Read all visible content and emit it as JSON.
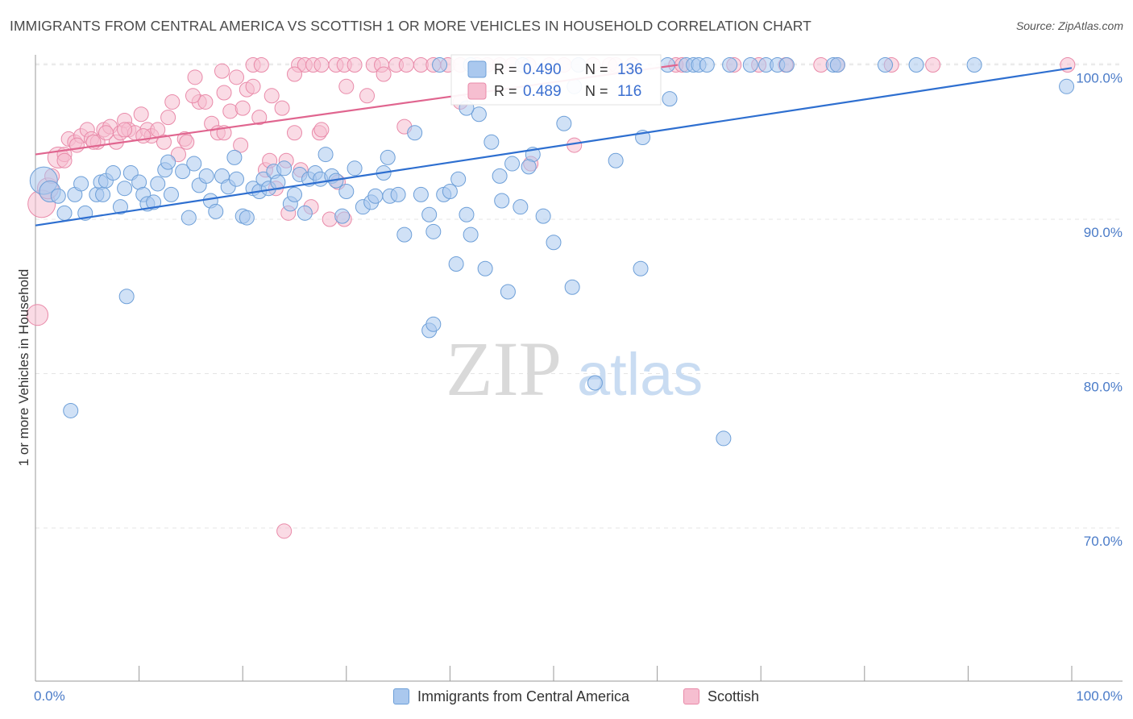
{
  "title": "IMMIGRANTS FROM CENTRAL AMERICA VS SCOTTISH 1 OR MORE VEHICLES IN HOUSEHOLD CORRELATION CHART",
  "source": "Source: ZipAtlas.com",
  "watermark": {
    "zip": "ZIP",
    "atlas": "atlas"
  },
  "colors": {
    "blue_fill": "#aac8ee",
    "blue_stroke": "#6d9fd8",
    "blue_line": "#2e6fd0",
    "pink_fill": "#f6bed0",
    "pink_stroke": "#e98aa9",
    "pink_line": "#e0658f",
    "axis_label": "#4a7bc8",
    "grid": "#e4e4e4"
  },
  "stats_legend": [
    {
      "r_label": "R = ",
      "r_value": "0.490",
      "n_label": "N = ",
      "n_value": "136",
      "series": "blue"
    },
    {
      "r_label": "R = ",
      "r_value": "0.489",
      "n_label": "N = ",
      "n_value": "116",
      "series": "pink"
    }
  ],
  "bottom_legend": [
    {
      "label": "Immigrants from Central America",
      "series": "blue"
    },
    {
      "label": "Scottish",
      "series": "pink"
    }
  ],
  "chart_data": {
    "type": "scatter",
    "title": "IMMIGRANTS FROM CENTRAL AMERICA VS SCOTTISH 1 OR MORE VEHICLES IN HOUSEHOLD CORRELATION CHART",
    "xlabel": "",
    "ylabel": "1 or more Vehicles in Household",
    "xlim": [
      0,
      100
    ],
    "ylim": [
      59.5,
      102
    ],
    "x_tick_labels": [
      "0.0%",
      "100.0%"
    ],
    "y_ticks": [
      70,
      80,
      90,
      100
    ],
    "y_tick_labels": [
      "70.0%",
      "80.0%",
      "90.0%",
      "100.0%"
    ],
    "grid": true,
    "legend_position": "top-center",
    "series": [
      {
        "name": "Immigrants from Central America",
        "color": "#aac8ee",
        "trend": {
          "x": [
            0,
            100
          ],
          "y": [
            89.6,
            99.8
          ]
        },
        "points": [
          [
            0.8,
            92.5,
            3
          ],
          [
            1.4,
            91.8,
            2
          ],
          [
            2.2,
            91.5,
            1
          ],
          [
            2.8,
            90.4,
            1
          ],
          [
            3.8,
            91.6,
            1
          ],
          [
            4.4,
            92.3,
            1
          ],
          [
            4.8,
            90.4,
            1
          ],
          [
            5.9,
            91.6,
            1
          ],
          [
            6.3,
            92.4,
            1
          ],
          [
            6.5,
            91.6,
            1
          ],
          [
            6.8,
            92.5,
            1
          ],
          [
            7.5,
            93.0,
            1
          ],
          [
            8.2,
            90.8,
            1
          ],
          [
            8.6,
            92.0,
            1
          ],
          [
            9.2,
            93.0,
            1
          ],
          [
            10.0,
            92.4,
            1
          ],
          [
            10.4,
            91.6,
            1
          ],
          [
            10.8,
            91.0,
            1
          ],
          [
            11.4,
            91.1,
            1
          ],
          [
            11.8,
            92.3,
            1
          ],
          [
            12.5,
            93.2,
            1
          ],
          [
            12.8,
            93.7,
            1
          ],
          [
            13.1,
            91.6,
            1
          ],
          [
            14.2,
            93.1,
            1
          ],
          [
            14.8,
            90.1,
            1
          ],
          [
            15.3,
            93.6,
            1
          ],
          [
            15.8,
            92.2,
            1
          ],
          [
            16.5,
            92.8,
            1
          ],
          [
            16.9,
            91.2,
            1
          ],
          [
            17.4,
            90.5,
            1
          ],
          [
            18.0,
            92.8,
            1
          ],
          [
            18.6,
            92.1,
            1
          ],
          [
            19.2,
            94.0,
            1
          ],
          [
            19.4,
            92.6,
            1
          ],
          [
            20.0,
            90.2,
            1
          ],
          [
            20.4,
            90.1,
            1
          ],
          [
            21.0,
            92.0,
            1
          ],
          [
            21.6,
            91.8,
            1
          ],
          [
            22.0,
            92.6,
            1
          ],
          [
            22.5,
            92.0,
            1
          ],
          [
            23.0,
            93.1,
            1
          ],
          [
            23.4,
            92.4,
            1
          ],
          [
            24.0,
            93.3,
            1
          ],
          [
            24.6,
            91.0,
            1
          ],
          [
            25.0,
            91.6,
            1
          ],
          [
            25.5,
            92.9,
            1
          ],
          [
            26.0,
            90.4,
            1
          ],
          [
            26.4,
            92.6,
            1
          ],
          [
            27.0,
            93.0,
            1
          ],
          [
            27.5,
            92.6,
            1
          ],
          [
            28.0,
            94.2,
            1
          ],
          [
            28.6,
            92.8,
            1
          ],
          [
            29.0,
            92.5,
            1
          ],
          [
            29.6,
            90.2,
            1
          ],
          [
            30.0,
            91.8,
            1
          ],
          [
            30.8,
            93.3,
            1
          ],
          [
            31.6,
            90.8,
            1
          ],
          [
            32.4,
            91.1,
            1
          ],
          [
            32.8,
            91.5,
            1
          ],
          [
            33.6,
            93.0,
            1
          ],
          [
            34.2,
            91.5,
            1
          ],
          [
            35.0,
            91.6,
            1
          ],
          [
            35.6,
            89.0,
            1
          ],
          [
            36.6,
            95.6,
            1
          ],
          [
            37.2,
            91.6,
            1
          ],
          [
            38.0,
            90.3,
            1
          ],
          [
            38.4,
            89.2,
            1
          ],
          [
            39.4,
            91.6,
            1
          ],
          [
            40.0,
            91.8,
            1
          ],
          [
            40.6,
            87.1,
            1
          ],
          [
            41.6,
            90.3,
            1
          ],
          [
            42.0,
            89.0,
            1
          ],
          [
            42.8,
            96.8,
            1
          ],
          [
            43.4,
            86.8,
            1
          ],
          [
            44.0,
            95.0,
            1
          ],
          [
            45.0,
            91.2,
            1
          ],
          [
            45.6,
            85.3,
            1
          ],
          [
            46.8,
            90.8,
            1
          ],
          [
            48.0,
            94.2,
            1
          ],
          [
            49.0,
            90.2,
            1
          ],
          [
            50.0,
            88.5,
            1
          ],
          [
            51.0,
            96.2,
            1
          ],
          [
            51.8,
            85.6,
            1
          ],
          [
            52.0,
            98.6,
            1
          ],
          [
            54.0,
            79.4,
            1
          ],
          [
            56.0,
            93.8,
            1
          ],
          [
            58.4,
            86.8,
            1
          ],
          [
            58.6,
            95.3,
            1
          ],
          [
            61.2,
            97.8,
            1
          ],
          [
            3.4,
            77.6,
            1
          ],
          [
            8.8,
            85.0,
            1
          ],
          [
            38.0,
            82.8,
            1
          ],
          [
            38.4,
            83.2,
            1
          ],
          [
            66.4,
            75.8,
            1
          ],
          [
            41.6,
            97.2,
            1
          ],
          [
            47.6,
            93.4,
            1
          ],
          [
            34.0,
            94.0,
            1
          ],
          [
            40.8,
            92.6,
            1
          ],
          [
            44.8,
            92.8,
            1
          ],
          [
            46.0,
            93.6,
            1
          ],
          [
            61.0,
            100.0,
            1
          ],
          [
            62.8,
            100.0,
            1
          ],
          [
            63.5,
            100.0,
            1
          ],
          [
            64.0,
            100.0,
            1
          ],
          [
            64.8,
            100.0,
            1
          ],
          [
            67.0,
            100.0,
            1
          ],
          [
            69.0,
            100.0,
            1
          ],
          [
            70.5,
            100.0,
            1
          ],
          [
            71.6,
            100.0,
            1
          ],
          [
            72.5,
            100.0,
            1
          ],
          [
            77.0,
            100.0,
            1
          ],
          [
            77.4,
            100.0,
            1
          ],
          [
            82.0,
            100.0,
            1
          ],
          [
            85.0,
            100.0,
            1
          ],
          [
            90.6,
            100.0,
            1
          ],
          [
            99.5,
            98.6,
            1
          ],
          [
            42.0,
            100.0,
            1
          ],
          [
            39.0,
            100.0,
            1
          ],
          [
            47.0,
            100.0,
            1
          ],
          [
            52.4,
            100.0,
            1
          ]
        ]
      },
      {
        "name": "Scottish",
        "color": "#f6bed0",
        "trend": {
          "x": [
            0,
            62
          ],
          "y": [
            94.2,
            100.0
          ]
        },
        "points": [
          [
            0.2,
            83.8,
            2
          ],
          [
            0.6,
            91.0,
            3
          ],
          [
            1.2,
            92.0,
            2
          ],
          [
            1.6,
            92.8,
            1
          ],
          [
            2.2,
            94.0,
            2
          ],
          [
            2.8,
            94.2,
            1
          ],
          [
            3.2,
            95.2,
            1
          ],
          [
            3.8,
            95.0,
            1
          ],
          [
            4.4,
            95.4,
            1
          ],
          [
            5.0,
            95.8,
            1
          ],
          [
            5.4,
            95.2,
            1
          ],
          [
            6.0,
            95.0,
            1
          ],
          [
            6.6,
            95.8,
            1
          ],
          [
            7.2,
            96.0,
            1
          ],
          [
            7.8,
            95.0,
            1
          ],
          [
            8.2,
            95.6,
            1
          ],
          [
            8.6,
            96.4,
            1
          ],
          [
            9.0,
            95.8,
            1
          ],
          [
            9.6,
            95.6,
            1
          ],
          [
            10.2,
            96.8,
            1
          ],
          [
            10.8,
            95.8,
            1
          ],
          [
            11.2,
            95.4,
            1
          ],
          [
            11.8,
            95.8,
            1
          ],
          [
            12.4,
            95.0,
            1
          ],
          [
            12.8,
            96.6,
            1
          ],
          [
            13.2,
            97.6,
            1
          ],
          [
            13.8,
            94.2,
            1
          ],
          [
            14.4,
            95.2,
            1
          ],
          [
            15.4,
            99.2,
            1
          ],
          [
            15.8,
            97.6,
            1
          ],
          [
            16.4,
            97.6,
            1
          ],
          [
            17.0,
            96.2,
            1
          ],
          [
            17.6,
            95.6,
            1
          ],
          [
            18.2,
            98.2,
            1
          ],
          [
            18.8,
            97.0,
            1
          ],
          [
            19.4,
            99.2,
            1
          ],
          [
            19.8,
            94.8,
            1
          ],
          [
            20.4,
            98.4,
            1
          ],
          [
            21.0,
            98.6,
            1
          ],
          [
            21.6,
            96.6,
            1
          ],
          [
            22.2,
            93.2,
            1
          ],
          [
            22.6,
            93.8,
            1
          ],
          [
            23.2,
            92.0,
            1
          ],
          [
            23.8,
            97.2,
            1
          ],
          [
            24.4,
            90.4,
            1
          ],
          [
            25.0,
            95.6,
            1
          ],
          [
            25.6,
            93.2,
            1
          ],
          [
            26.6,
            90.8,
            1
          ],
          [
            27.4,
            95.6,
            1
          ],
          [
            28.4,
            90.0,
            1
          ],
          [
            29.2,
            92.4,
            1
          ],
          [
            29.8,
            90.0,
            1
          ],
          [
            32.0,
            98.0,
            1
          ],
          [
            35.6,
            96.0,
            1
          ],
          [
            41.0,
            97.6,
            1
          ],
          [
            47.8,
            93.6,
            1
          ],
          [
            52.0,
            94.8,
            1
          ],
          [
            8.6,
            95.8,
            1
          ],
          [
            5.6,
            95.0,
            1
          ],
          [
            2.8,
            93.8,
            1
          ],
          [
            4.0,
            94.8,
            1
          ],
          [
            6.8,
            95.6,
            1
          ],
          [
            10.4,
            95.4,
            1
          ],
          [
            18.2,
            95.6,
            1
          ],
          [
            14.6,
            95.0,
            1
          ],
          [
            24.2,
            93.8,
            1
          ],
          [
            22.8,
            98.0,
            1
          ],
          [
            27.6,
            95.8,
            1
          ],
          [
            24.0,
            69.8,
            1
          ],
          [
            21.0,
            100.0,
            1
          ],
          [
            21.8,
            100.0,
            1
          ],
          [
            25.4,
            100.0,
            1
          ],
          [
            26.0,
            100.0,
            1
          ],
          [
            26.8,
            100.0,
            1
          ],
          [
            27.6,
            100.0,
            1
          ],
          [
            29.0,
            100.0,
            1
          ],
          [
            29.8,
            100.0,
            1
          ],
          [
            30.8,
            100.0,
            1
          ],
          [
            32.6,
            100.0,
            1
          ],
          [
            33.4,
            100.0,
            1
          ],
          [
            34.8,
            100.0,
            1
          ],
          [
            35.8,
            100.0,
            1
          ],
          [
            37.2,
            100.0,
            1
          ],
          [
            38.4,
            100.0,
            1
          ],
          [
            39.8,
            100.0,
            1
          ],
          [
            41.0,
            100.0,
            1
          ],
          [
            42.6,
            100.0,
            1
          ],
          [
            43.6,
            100.0,
            1
          ],
          [
            44.8,
            100.0,
            1
          ],
          [
            46.0,
            100.0,
            1
          ],
          [
            47.6,
            100.0,
            1
          ],
          [
            49.6,
            100.0,
            1
          ],
          [
            51.0,
            100.0,
            1
          ],
          [
            52.4,
            100.0,
            1
          ],
          [
            53.8,
            100.0,
            1
          ],
          [
            55.4,
            100.0,
            1
          ],
          [
            56.0,
            100.0,
            1
          ],
          [
            57.6,
            100.0,
            1
          ],
          [
            61.8,
            100.0,
            1
          ],
          [
            62.4,
            100.0,
            1
          ],
          [
            67.4,
            100.0,
            1
          ],
          [
            69.8,
            100.0,
            1
          ],
          [
            72.4,
            100.0,
            1
          ],
          [
            75.8,
            100.0,
            1
          ],
          [
            77.4,
            100.0,
            1
          ],
          [
            82.6,
            100.0,
            1
          ],
          [
            86.6,
            100.0,
            1
          ],
          [
            99.6,
            100.0,
            1
          ],
          [
            25.0,
            99.4,
            1
          ],
          [
            15.2,
            98.0,
            1
          ],
          [
            30.0,
            98.6,
            1
          ],
          [
            18.0,
            99.6,
            1
          ],
          [
            33.6,
            99.4,
            1
          ],
          [
            20.0,
            97.2,
            1
          ]
        ]
      }
    ]
  }
}
